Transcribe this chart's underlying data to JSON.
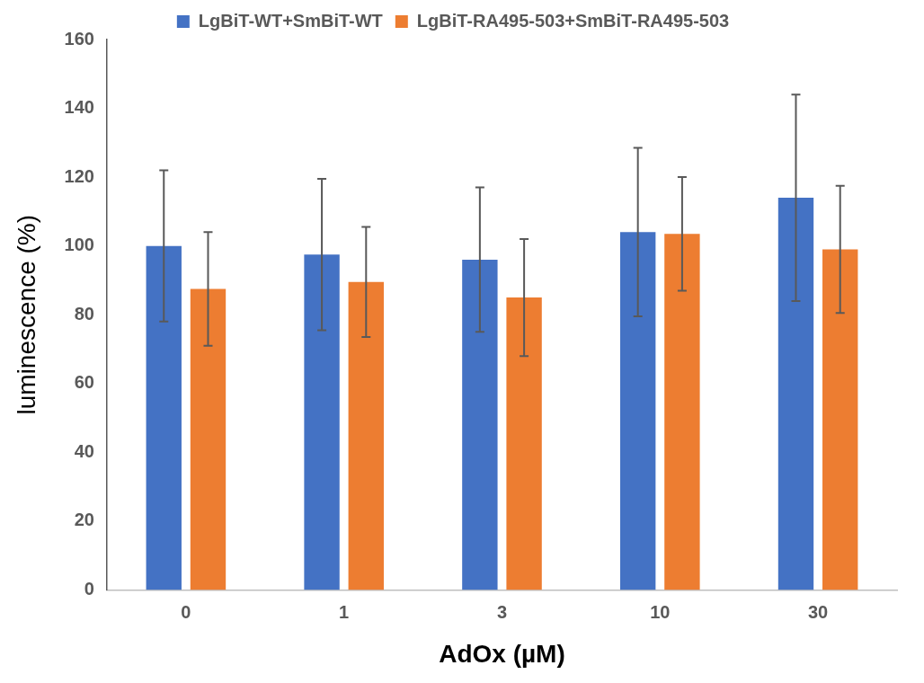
{
  "chart_data": {
    "type": "bar",
    "xlabel": "AdOx (µM)",
    "ylabel": "luminescence (%)",
    "categories": [
      "0",
      "1",
      "3",
      "10",
      "30"
    ],
    "series": [
      {
        "name": "LgBiT-WT+SmBiT-WT",
        "color": "#4472c4",
        "values": [
          100,
          97.5,
          96,
          104,
          114
        ],
        "errors": [
          22,
          22,
          21,
          24.5,
          30
        ]
      },
      {
        "name": "LgBiT-RA495-503+SmBiT-RA495-503",
        "color": "#ed7d31",
        "values": [
          87.5,
          89.5,
          85,
          103.5,
          99
        ],
        "errors": [
          16.5,
          16,
          17,
          16.5,
          18.5
        ]
      }
    ],
    "ylim": [
      0,
      160
    ],
    "yticks": [
      0,
      20,
      40,
      60,
      80,
      100,
      120,
      140,
      160
    ],
    "grid": false,
    "legend": "top"
  }
}
